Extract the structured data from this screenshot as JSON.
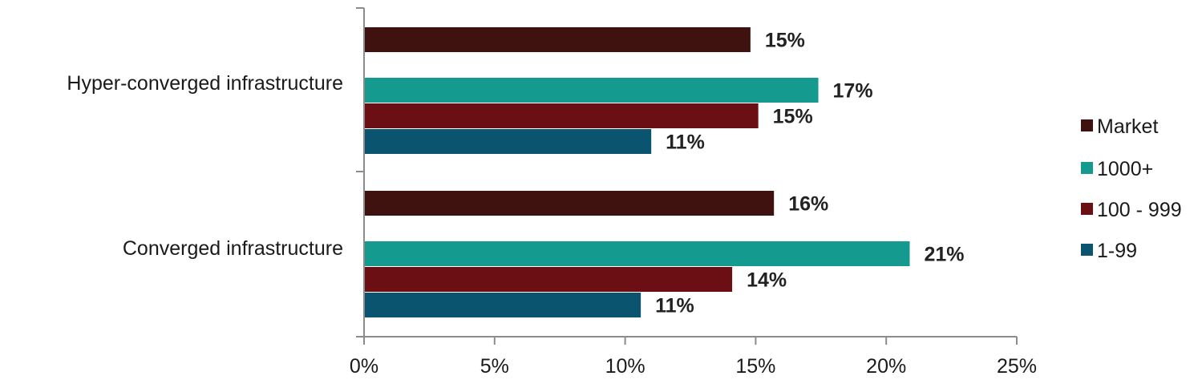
{
  "chart_data": {
    "type": "bar",
    "orientation": "horizontal",
    "categories": [
      "Hyper-converged infrastructure",
      "Converged infrastructure"
    ],
    "series": [
      {
        "name": "Market",
        "color": "#3f1210",
        "values": [
          14.8,
          15.7
        ],
        "labels": [
          "15%",
          "16%"
        ]
      },
      {
        "name": "1000+",
        "color": "#149a8f",
        "values": [
          17.4,
          20.9
        ],
        "labels": [
          "17%",
          "21%"
        ]
      },
      {
        "name": "100 - 999",
        "color": "#6b0f14",
        "values": [
          15.1,
          14.1
        ],
        "labels": [
          "15%",
          "14%"
        ]
      },
      {
        "name": "1-99",
        "color": "#0b5470",
        "values": [
          11.0,
          10.6
        ],
        "labels": [
          "11%",
          "11%"
        ]
      }
    ],
    "xlim": [
      0,
      25
    ],
    "xticks": [
      0,
      5,
      10,
      15,
      20,
      25
    ],
    "xtick_labels": [
      "0%",
      "5%",
      "10%",
      "15%",
      "20%",
      "25%"
    ],
    "legend": {
      "placement": "right",
      "entries": [
        "Market",
        "1000+",
        "100 - 999",
        "1-99"
      ]
    },
    "grid": false
  }
}
